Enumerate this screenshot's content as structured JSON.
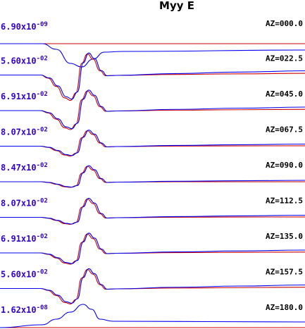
{
  "chart_data": {
    "type": "line",
    "title": "Myy E",
    "series": [
      {
        "name": "",
        "color": "#cc0000"
      },
      {
        "name": "",
        "color": "#0000ee"
      }
    ],
    "panels": [
      {
        "label": "AZ=000.0",
        "amplitude": {
          "mantissa": "6.90x10",
          "exponent": "-09"
        },
        "red": "flat",
        "blue": "sigmoid-down"
      },
      {
        "label": "AZ=022.5",
        "amplitude": {
          "mantissa": "5.60x10",
          "exponent": "-02"
        },
        "red": "wave",
        "blue": "wave"
      },
      {
        "label": "AZ=045.0",
        "amplitude": {
          "mantissa": "6.91x10",
          "exponent": "-02"
        },
        "red": "wave",
        "blue": "wave"
      },
      {
        "label": "AZ=067.5",
        "amplitude": {
          "mantissa": "8.07x10",
          "exponent": "-02"
        },
        "red": "wave",
        "blue": "wave"
      },
      {
        "label": "AZ=090.0",
        "amplitude": {
          "mantissa": "8.47x10",
          "exponent": "-02"
        },
        "red": "wave",
        "blue": "wave"
      },
      {
        "label": "AZ=112.5",
        "amplitude": {
          "mantissa": "8.07x10",
          "exponent": "-02"
        },
        "red": "wave",
        "blue": "wave"
      },
      {
        "label": "AZ=135.0",
        "amplitude": {
          "mantissa": "6.91x10",
          "exponent": "-02"
        },
        "red": "wave",
        "blue": "wave"
      },
      {
        "label": "AZ=157.5",
        "amplitude": {
          "mantissa": "5.60x10",
          "exponent": "-02"
        },
        "red": "wave",
        "blue": "wave"
      },
      {
        "label": "AZ=180.0",
        "amplitude": {
          "mantissa": "1.62x10",
          "exponent": "-08"
        },
        "red": "flat",
        "blue": "bump-up"
      }
    ],
    "colors": {
      "amplitude_text": "#3300cc"
    }
  }
}
